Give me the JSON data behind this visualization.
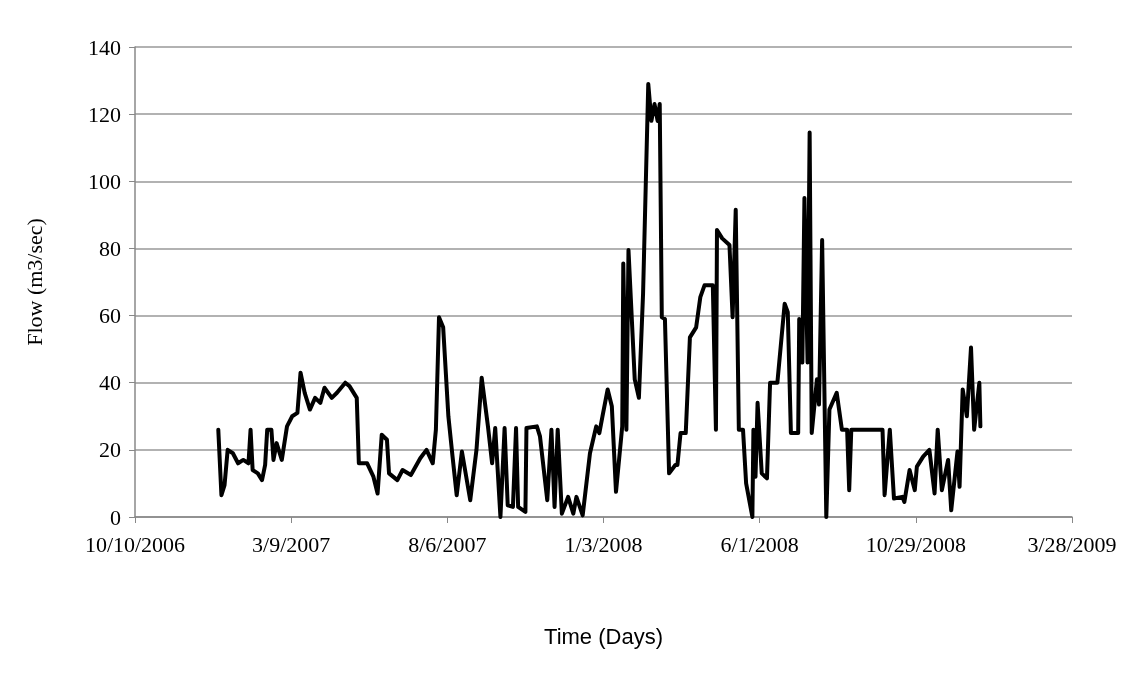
{
  "chart_data": {
    "type": "line",
    "xlabel": "Time (Days)",
    "ylabel": "Flow (m3/sec)",
    "xlim": [
      "2006-10-10",
      "2009-03-28"
    ],
    "xticks": [
      {
        "value": "2006-10-10",
        "label": "10/10/2006"
      },
      {
        "value": "2007-03-09",
        "label": "3/9/2007"
      },
      {
        "value": "2007-08-06",
        "label": "8/6/2007"
      },
      {
        "value": "2008-01-03",
        "label": "1/3/2008"
      },
      {
        "value": "2008-06-01",
        "label": "6/1/2008"
      },
      {
        "value": "2008-10-29",
        "label": "10/29/2008"
      },
      {
        "value": "2009-03-28",
        "label": "3/28/2009"
      }
    ],
    "ylim": [
      0,
      140
    ],
    "yticks": [
      0,
      20,
      40,
      60,
      80,
      100,
      120,
      140
    ],
    "grid": "y",
    "marker": "none",
    "line_style": "solid",
    "x": [
      "2006-12-29",
      "2007-01-01",
      "2007-01-04",
      "2007-01-07",
      "2007-01-12",
      "2007-01-17",
      "2007-01-22",
      "2007-01-27",
      "2007-01-29",
      "2007-01-31",
      "2007-02-05",
      "2007-02-09",
      "2007-02-12",
      "2007-02-14",
      "2007-02-18",
      "2007-02-20",
      "2007-02-23",
      "2007-02-28",
      "2007-03-05",
      "2007-03-10",
      "2007-03-15",
      "2007-03-18",
      "2007-03-22",
      "2007-03-27",
      "2007-04-01",
      "2007-04-06",
      "2007-04-10",
      "2007-04-17",
      "2007-04-22",
      "2007-04-30",
      "2007-05-04",
      "2007-05-11",
      "2007-05-13",
      "2007-05-21",
      "2007-05-27",
      "2007-05-31",
      "2007-06-04",
      "2007-06-09",
      "2007-06-11",
      "2007-06-19",
      "2007-06-24",
      "2007-07-02",
      "2007-07-11",
      "2007-07-17",
      "2007-07-23",
      "2007-07-26",
      "2007-07-29",
      "2007-08-02",
      "2007-08-07",
      "2007-08-11",
      "2007-08-15",
      "2007-08-20",
      "2007-08-28",
      "2007-09-03",
      "2007-09-08",
      "2007-09-14",
      "2007-09-18",
      "2007-09-21",
      "2007-09-26",
      "2007-09-30",
      "2007-10-03",
      "2007-10-08",
      "2007-10-11",
      "2007-10-13",
      "2007-10-20",
      "2007-10-21",
      "2007-10-31",
      "2007-11-03",
      "2007-11-10",
      "2007-11-14",
      "2007-11-17",
      "2007-11-20",
      "2007-11-24",
      "2007-11-30",
      "2007-12-05",
      "2007-12-08",
      "2007-12-14",
      "2007-12-21",
      "2007-12-27",
      "2007-12-30",
      "2008-01-02",
      "2008-01-07",
      "2008-01-11",
      "2008-01-15",
      "2008-01-21",
      "2008-01-22",
      "2008-01-25",
      "2008-01-27",
      "2008-02-02",
      "2008-02-06",
      "2008-02-10",
      "2008-02-15",
      "2008-02-18",
      "2008-02-21",
      "2008-02-24",
      "2008-02-26",
      "2008-02-28",
      "2008-03-02",
      "2008-03-06",
      "2008-03-12",
      "2008-03-14",
      "2008-03-17",
      "2008-03-22",
      "2008-03-26",
      "2008-04-01",
      "2008-04-05",
      "2008-04-09",
      "2008-04-17",
      "2008-04-20",
      "2008-04-21",
      "2008-04-26",
      "2008-05-03",
      "2008-05-06",
      "2008-05-09",
      "2008-05-12",
      "2008-05-16",
      "2008-05-19",
      "2008-05-25",
      "2008-05-26",
      "2008-05-28",
      "2008-05-30",
      "2008-06-03",
      "2008-06-08",
      "2008-06-11",
      "2008-06-18",
      "2008-06-25",
      "2008-06-28",
      "2008-07-01",
      "2008-07-08",
      "2008-07-09",
      "2008-07-12",
      "2008-07-14",
      "2008-07-17",
      "2008-07-19",
      "2008-07-21",
      "2008-07-26",
      "2008-07-28",
      "2008-07-31",
      "2008-08-04",
      "2008-08-07",
      "2008-08-14",
      "2008-08-19",
      "2008-08-24",
      "2008-08-26",
      "2008-08-28",
      "2008-09-27",
      "2008-09-29",
      "2008-10-04",
      "2008-10-08",
      "2008-10-16",
      "2008-10-18",
      "2008-10-23",
      "2008-10-28",
      "2008-10-30",
      "2008-11-05",
      "2008-11-11",
      "2008-11-16",
      "2008-11-19",
      "2008-11-23",
      "2008-11-29",
      "2008-12-02",
      "2008-12-08",
      "2008-12-10",
      "2008-12-13",
      "2008-12-17",
      "2008-12-21",
      "2008-12-24",
      "2008-12-29",
      "2008-12-30"
    ],
    "series": [
      {
        "color": "#000000",
        "values": [
          26,
          6.5,
          9.5,
          20,
          19,
          16,
          17,
          16,
          26,
          14,
          13,
          11,
          15.5,
          26,
          26,
          17,
          22,
          17,
          27,
          30,
          31,
          43,
          37,
          32,
          35.5,
          34,
          38.5,
          35.5,
          37,
          40,
          39,
          35.5,
          16,
          16,
          12,
          7,
          24.5,
          23,
          13,
          11,
          14,
          12.5,
          17.5,
          20,
          16,
          26,
          59.5,
          56.5,
          30,
          18,
          6.5,
          19.5,
          5,
          20,
          41.5,
          27,
          16,
          26.5,
          0,
          26.5,
          3.5,
          3,
          26.5,
          3,
          1.5,
          26.5,
          27,
          24,
          5,
          26,
          3,
          26,
          1,
          6,
          1,
          6,
          0.5,
          19,
          27,
          25,
          30,
          38,
          33,
          7.5,
          27,
          75.5,
          26,
          79.5,
          41,
          35.5,
          66.5,
          129,
          118,
          123,
          118,
          123,
          59.5,
          59,
          13,
          15.5,
          15.5,
          25,
          25,
          53.5,
          56.5,
          65.5,
          69,
          69,
          26,
          85.5,
          83,
          81,
          59.5,
          91.5,
          26,
          26,
          10,
          0,
          26,
          12,
          34,
          13,
          11.5,
          40,
          40,
          63.5,
          61,
          25,
          25,
          59,
          46,
          95,
          46,
          114.5,
          25,
          41,
          33.5,
          82.5,
          0,
          32,
          37,
          26,
          26,
          8,
          26,
          26,
          6.5,
          26,
          5.5,
          6,
          4.5,
          14,
          8,
          15,
          18,
          20,
          7,
          26,
          8,
          17,
          2,
          19.5,
          9,
          38,
          30,
          50.5,
          26,
          40,
          27
        ]
      }
    ]
  }
}
